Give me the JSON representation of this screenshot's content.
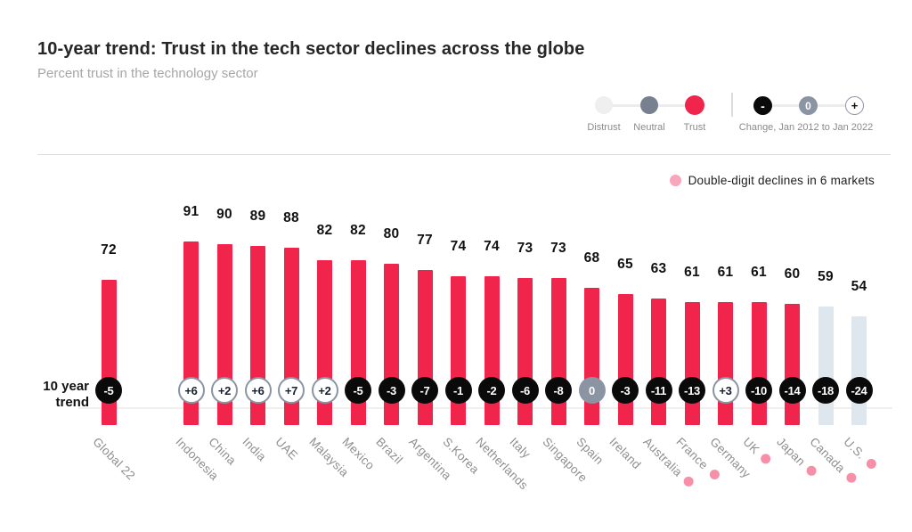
{
  "title": "10-year trend: Trust in the tech sector declines across the globe",
  "subtitle": "Percent trust in the technology sector",
  "legend": {
    "items": [
      {
        "label": "Distrust",
        "color": "#EFEFEF"
      },
      {
        "label": "Neutral",
        "color": "#76808F"
      },
      {
        "label": "Trust",
        "color": "#F1254B"
      }
    ],
    "change_label": "Change, Jan 2012 to Jan 2022",
    "change_symbols": {
      "minus": "-",
      "zero": "0",
      "plus": "+"
    }
  },
  "annotation": {
    "text": "Double-digit declines in 6 markets",
    "dot_color": "#F7A6BC"
  },
  "trend_caption_line1": "10 year",
  "trend_caption_line2": "trend",
  "colors": {
    "trust_bar": "#F1254B",
    "distrust_bar": "#DDE7ED",
    "badge_negative": "#0A0A0A",
    "badge_zero": "#8A94A3",
    "badge_positive_ring": "#8A94A3",
    "decline_dot": "#F78FA7"
  },
  "chart_data": {
    "type": "bar",
    "title": "10-year trend: Trust in the tech sector declines across the globe",
    "ylabel": "Percent trust in the technology sector",
    "ylim": [
      0,
      100
    ],
    "grid": false,
    "trend_row_label": "10 year trend",
    "categories": [
      "Global 22",
      "Indonesia",
      "China",
      "India",
      "UAE",
      "Malaysia",
      "Mexico",
      "Brazil",
      "Argentina",
      "S.Korea",
      "Netherlands",
      "Italy",
      "Singapore",
      "Spain",
      "Ireland",
      "Australia",
      "France",
      "Germany",
      "UK",
      "Japan",
      "Canada",
      "U.S."
    ],
    "values": [
      72,
      91,
      90,
      89,
      88,
      82,
      82,
      80,
      77,
      74,
      74,
      73,
      73,
      68,
      65,
      63,
      61,
      61,
      61,
      60,
      59,
      54
    ],
    "changes": [
      "-5",
      "+6",
      "+2",
      "+6",
      "+7",
      "+2",
      "-5",
      "-3",
      "-7",
      "-1",
      "-2",
      "-6",
      "-8",
      "0",
      "-3",
      "-11",
      "-13",
      "+3",
      "-10",
      "-14",
      "-18",
      "-24"
    ],
    "bars": [
      {
        "label": "Global 22",
        "value": 72,
        "change": "-5",
        "style": "trust",
        "decline_dot": false
      },
      {
        "label": "Indonesia",
        "value": 91,
        "change": "+6",
        "style": "trust",
        "decline_dot": false
      },
      {
        "label": "China",
        "value": 90,
        "change": "+2",
        "style": "trust",
        "decline_dot": false
      },
      {
        "label": "India",
        "value": 89,
        "change": "+6",
        "style": "trust",
        "decline_dot": false
      },
      {
        "label": "UAE",
        "value": 88,
        "change": "+7",
        "style": "trust",
        "decline_dot": false
      },
      {
        "label": "Malaysia",
        "value": 82,
        "change": "+2",
        "style": "trust",
        "decline_dot": false
      },
      {
        "label": "Mexico",
        "value": 82,
        "change": "-5",
        "style": "trust",
        "decline_dot": false
      },
      {
        "label": "Brazil",
        "value": 80,
        "change": "-3",
        "style": "trust",
        "decline_dot": false
      },
      {
        "label": "Argentina",
        "value": 77,
        "change": "-7",
        "style": "trust",
        "decline_dot": false
      },
      {
        "label": "S.Korea",
        "value": 74,
        "change": "-1",
        "style": "trust",
        "decline_dot": false
      },
      {
        "label": "Netherlands",
        "value": 74,
        "change": "-2",
        "style": "trust",
        "decline_dot": false
      },
      {
        "label": "Italy",
        "value": 73,
        "change": "-6",
        "style": "trust",
        "decline_dot": false
      },
      {
        "label": "Singapore",
        "value": 73,
        "change": "-8",
        "style": "trust",
        "decline_dot": false
      },
      {
        "label": "Spain",
        "value": 68,
        "change": "0",
        "style": "trust",
        "decline_dot": false
      },
      {
        "label": "Ireland",
        "value": 65,
        "change": "-3",
        "style": "trust",
        "decline_dot": false
      },
      {
        "label": "Australia",
        "value": 63,
        "change": "-11",
        "style": "trust",
        "decline_dot": true
      },
      {
        "label": "France",
        "value": 61,
        "change": "-13",
        "style": "trust",
        "decline_dot": true
      },
      {
        "label": "Germany",
        "value": 61,
        "change": "+3",
        "style": "trust",
        "decline_dot": false
      },
      {
        "label": "UK",
        "value": 61,
        "change": "-10",
        "style": "trust",
        "decline_dot": true
      },
      {
        "label": "Japan",
        "value": 60,
        "change": "-14",
        "style": "trust",
        "decline_dot": true
      },
      {
        "label": "Canada",
        "value": 59,
        "change": "-18",
        "style": "distrust",
        "decline_dot": true
      },
      {
        "label": "U.S.",
        "value": 54,
        "change": "-24",
        "style": "distrust",
        "decline_dot": true
      }
    ],
    "double_digit_decline_markets": [
      "Australia",
      "France",
      "UK",
      "Japan",
      "Canada",
      "U.S."
    ]
  }
}
